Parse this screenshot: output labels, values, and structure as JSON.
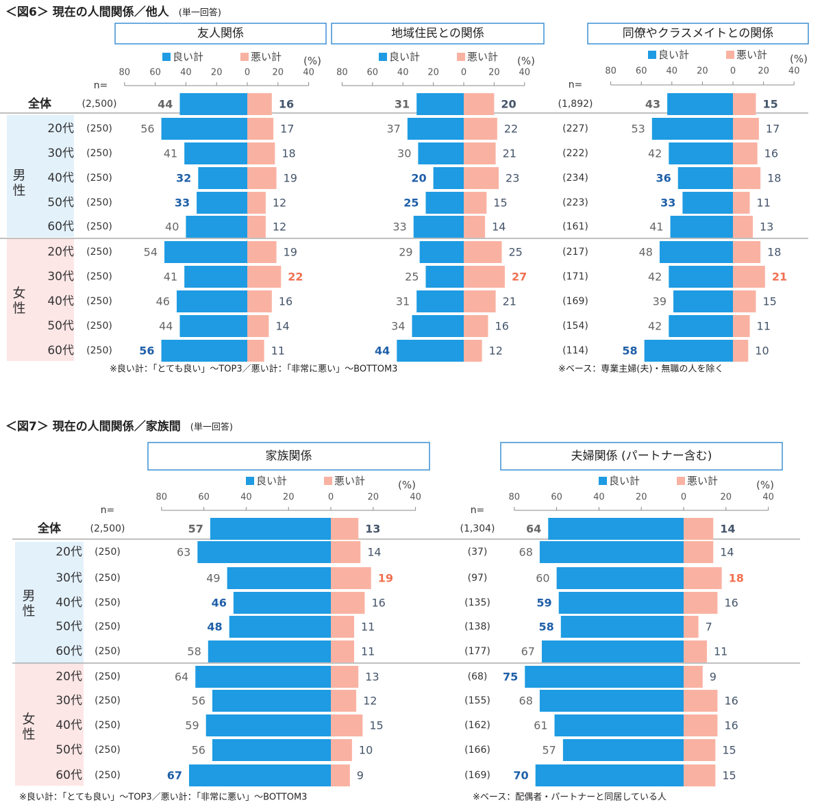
{
  "colors": {
    "good": "#1e9be2",
    "bad": "#f9b2a2",
    "male_bg": "#e3f1fb",
    "female_bg": "#fde6e6",
    "panel_border": "#3b8fd4",
    "hi_good": "#1f5fa8",
    "hi_bad": "#f07050"
  },
  "legend": {
    "good": "良い計",
    "bad": "悪い計",
    "unit": "(%)"
  },
  "axis_ticks": [
    "80",
    "60",
    "40",
    "20",
    "0",
    "20",
    "40"
  ],
  "n_label": "n=",
  "total_label": "全体",
  "gender_labels": {
    "male": "男性",
    "female": "女性"
  },
  "figures": [
    {
      "title": "＜図6＞ 現在の人間関係／他人",
      "subtitle": "(単一回答)",
      "notes": [
        "※良い計：「とても良い」～TOP3／悪い計：「非常に悪い」～BOTTOM3",
        "※ベース：専業主婦(夫)・無職の人を除く"
      ]
    },
    {
      "title": "＜図7＞ 現在の人間関係／家族間",
      "subtitle": "(単一回答)",
      "notes": [
        "※良い計：「とても良い」～TOP3／悪い計：「非常に悪い」～BOTTOM3",
        "※ベース：配偶者・パートナーと同居している人"
      ]
    }
  ],
  "chart_data": [
    {
      "type": "bar",
      "orientation": "horizontal-diverging",
      "figure": 0,
      "title": "友人関係",
      "categories": [
        "全体",
        "男性20代",
        "男性30代",
        "男性40代",
        "男性50代",
        "男性60代",
        "女性20代",
        "女性30代",
        "女性40代",
        "女性50代",
        "女性60代"
      ],
      "row_labels": [
        "全体",
        "20代",
        "30代",
        "40代",
        "50代",
        "60代",
        "20代",
        "30代",
        "40代",
        "50代",
        "60代"
      ],
      "n": [
        "(2,500)",
        "(250)",
        "(250)",
        "(250)",
        "(250)",
        "(250)",
        "(250)",
        "(250)",
        "(250)",
        "(250)",
        "(250)"
      ],
      "series": [
        {
          "name": "良い計",
          "values": [
            44,
            56,
            41,
            32,
            33,
            40,
            54,
            41,
            46,
            44,
            56
          ],
          "highlight": [
            false,
            false,
            false,
            true,
            true,
            false,
            false,
            false,
            false,
            false,
            true
          ]
        },
        {
          "name": "悪い計",
          "values": [
            16,
            17,
            18,
            19,
            12,
            12,
            19,
            22,
            16,
            14,
            11
          ],
          "highlight": [
            false,
            false,
            false,
            false,
            false,
            false,
            false,
            true,
            false,
            false,
            false
          ]
        }
      ],
      "xlim": [
        -80,
        40
      ]
    },
    {
      "type": "bar",
      "orientation": "horizontal-diverging",
      "figure": 0,
      "title": "地域住民との関係",
      "categories": [
        "全体",
        "男性20代",
        "男性30代",
        "男性40代",
        "男性50代",
        "男性60代",
        "女性20代",
        "女性30代",
        "女性40代",
        "女性50代",
        "女性60代"
      ],
      "series": [
        {
          "name": "良い計",
          "values": [
            31,
            37,
            30,
            20,
            25,
            33,
            29,
            25,
            31,
            34,
            44
          ],
          "highlight": [
            false,
            false,
            false,
            true,
            true,
            false,
            false,
            false,
            false,
            false,
            true
          ]
        },
        {
          "name": "悪い計",
          "values": [
            20,
            22,
            21,
            23,
            15,
            14,
            25,
            27,
            21,
            16,
            12
          ],
          "highlight": [
            false,
            false,
            false,
            false,
            false,
            false,
            false,
            true,
            false,
            false,
            false
          ]
        }
      ],
      "xlim": [
        -80,
        40
      ]
    },
    {
      "type": "bar",
      "orientation": "horizontal-diverging",
      "figure": 0,
      "title": "同僚やクラスメイトとの関係",
      "categories": [
        "全体",
        "男性20代",
        "男性30代",
        "男性40代",
        "男性50代",
        "男性60代",
        "女性20代",
        "女性30代",
        "女性40代",
        "女性50代",
        "女性60代"
      ],
      "n": [
        "(1,892)",
        "(227)",
        "(222)",
        "(234)",
        "(223)",
        "(161)",
        "(217)",
        "(171)",
        "(169)",
        "(154)",
        "(114)"
      ],
      "series": [
        {
          "name": "良い計",
          "values": [
            43,
            53,
            42,
            36,
            33,
            41,
            48,
            42,
            39,
            42,
            58
          ],
          "highlight": [
            false,
            false,
            false,
            true,
            true,
            false,
            false,
            false,
            false,
            false,
            true
          ]
        },
        {
          "name": "悪い計",
          "values": [
            15,
            17,
            16,
            18,
            11,
            13,
            18,
            21,
            15,
            11,
            10
          ],
          "highlight": [
            false,
            false,
            false,
            false,
            false,
            false,
            false,
            true,
            false,
            false,
            false
          ]
        }
      ],
      "xlim": [
        -80,
        40
      ]
    },
    {
      "type": "bar",
      "orientation": "horizontal-diverging",
      "figure": 1,
      "title": "家族関係",
      "categories": [
        "全体",
        "男性20代",
        "男性30代",
        "男性40代",
        "男性50代",
        "男性60代",
        "女性20代",
        "女性30代",
        "女性40代",
        "女性50代",
        "女性60代"
      ],
      "row_labels": [
        "全体",
        "20代",
        "30代",
        "40代",
        "50代",
        "60代",
        "20代",
        "30代",
        "40代",
        "50代",
        "60代"
      ],
      "n": [
        "(2,500)",
        "(250)",
        "(250)",
        "(250)",
        "(250)",
        "(250)",
        "(250)",
        "(250)",
        "(250)",
        "(250)",
        "(250)"
      ],
      "series": [
        {
          "name": "良い計",
          "values": [
            57,
            63,
            49,
            46,
            48,
            58,
            64,
            56,
            59,
            56,
            67
          ],
          "highlight": [
            false,
            false,
            false,
            true,
            true,
            false,
            false,
            false,
            false,
            false,
            true
          ]
        },
        {
          "name": "悪い計",
          "values": [
            13,
            14,
            19,
            16,
            11,
            11,
            13,
            12,
            15,
            10,
            9
          ],
          "highlight": [
            false,
            false,
            true,
            false,
            false,
            false,
            false,
            false,
            false,
            false,
            false
          ]
        }
      ],
      "xlim": [
        -80,
        40
      ]
    },
    {
      "type": "bar",
      "orientation": "horizontal-diverging",
      "figure": 1,
      "title": "夫婦関係 (パートナー含む)",
      "categories": [
        "全体",
        "男性20代",
        "男性30代",
        "男性40代",
        "男性50代",
        "男性60代",
        "女性20代",
        "女性30代",
        "女性40代",
        "女性50代",
        "女性60代"
      ],
      "n": [
        "(1,304)",
        "(37)",
        "(97)",
        "(135)",
        "(138)",
        "(177)",
        "(68)",
        "(155)",
        "(162)",
        "(166)",
        "(169)"
      ],
      "series": [
        {
          "name": "良い計",
          "values": [
            64,
            68,
            60,
            59,
            58,
            67,
            75,
            68,
            61,
            57,
            70
          ],
          "highlight": [
            false,
            false,
            false,
            true,
            true,
            false,
            true,
            false,
            false,
            false,
            true
          ]
        },
        {
          "name": "悪い計",
          "values": [
            14,
            14,
            18,
            16,
            7,
            11,
            9,
            16,
            16,
            15,
            15
          ],
          "highlight": [
            false,
            false,
            true,
            false,
            false,
            false,
            false,
            false,
            false,
            false,
            false
          ]
        }
      ],
      "xlim": [
        -80,
        40
      ]
    }
  ]
}
